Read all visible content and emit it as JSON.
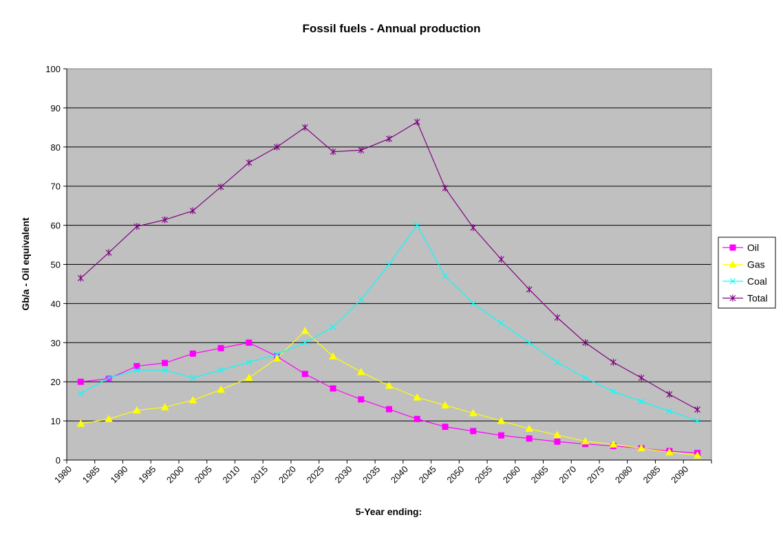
{
  "chart_data": {
    "type": "line",
    "title": "Fossil fuels - Annual production",
    "xlabel": "5-Year ending:",
    "ylabel": "Gb/a - Oil equivalent",
    "ylim": [
      0,
      100
    ],
    "y_ticks": [
      0,
      10,
      20,
      30,
      40,
      50,
      60,
      70,
      80,
      90,
      100
    ],
    "x_tick_labels": [
      "1980",
      "1985",
      "1990",
      "1995",
      "2000",
      "2005",
      "2010",
      "2015",
      "2020",
      "2025",
      "2030",
      "2035",
      "2040",
      "2045",
      "2050",
      "2055",
      "2060",
      "2065",
      "2070",
      "2075",
      "2080",
      "2085",
      "2090"
    ],
    "grid": "horizontal",
    "plot_background": "#c0c0c0",
    "legend_position": "right",
    "series": [
      {
        "name": "Oil",
        "color": "#ff00ff",
        "marker": "square",
        "values": [
          20,
          20.8,
          24,
          24.8,
          27.2,
          28.6,
          30,
          26.5,
          22,
          18.3,
          15.5,
          13,
          10.5,
          8.5,
          7.4,
          6.3,
          5.5,
          4.7,
          4.1,
          3.6,
          3,
          2.3,
          1.8
        ]
      },
      {
        "name": "Gas",
        "color": "#ffff00",
        "marker": "triangle",
        "values": [
          9.3,
          10.5,
          12.7,
          13.5,
          15.3,
          18,
          21,
          26,
          33,
          26.5,
          22.5,
          19,
          16,
          14,
          12,
          10,
          8,
          6.4,
          4.8,
          4,
          3,
          2,
          1.2
        ]
      },
      {
        "name": "Coal",
        "color": "#00ffff",
        "marker": "x",
        "values": [
          17,
          21,
          23,
          23,
          21,
          23,
          25,
          27,
          30,
          34,
          41,
          50,
          60,
          47,
          40,
          35,
          30,
          25,
          21,
          17.5,
          15,
          12.5,
          10
        ]
      },
      {
        "name": "Total",
        "color": "#800080",
        "marker": "star",
        "values": [
          46.5,
          53,
          59.7,
          61.4,
          63.7,
          69.8,
          76,
          80,
          85,
          78.8,
          79.2,
          82.1,
          86.4,
          69.5,
          59.4,
          51.3,
          43.6,
          36.4,
          30,
          25,
          21,
          16.8,
          12.9
        ]
      }
    ]
  }
}
